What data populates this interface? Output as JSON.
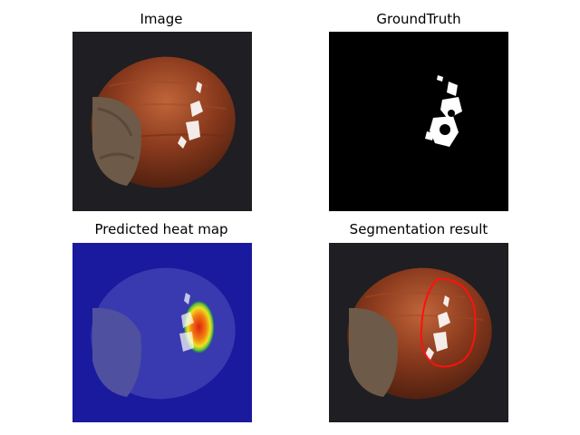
{
  "figure": {
    "panels": [
      {
        "title": "Image",
        "content": "hazelnut photo with white scratch marks"
      },
      {
        "title": "GroundTruth",
        "content": "binary mask of defect region"
      },
      {
        "title": "Predicted heat map",
        "content": "heat map overlay on hazelnut"
      },
      {
        "title": "Segmentation result",
        "content": "hazelnut with red contour around defect"
      }
    ],
    "colors": {
      "background_dark": "#1f1e22",
      "nut_brown": "#8a3a1d",
      "nut_highlight": "#b5562e",
      "shell_tip": "#6e5a48",
      "mask_white": "#ffffff",
      "mask_black": "#000000",
      "heat_blue": "#1a1a9e",
      "heat_red": "#e02010",
      "heat_yellow": "#f0e020",
      "contour_red": "#ff1010"
    }
  }
}
